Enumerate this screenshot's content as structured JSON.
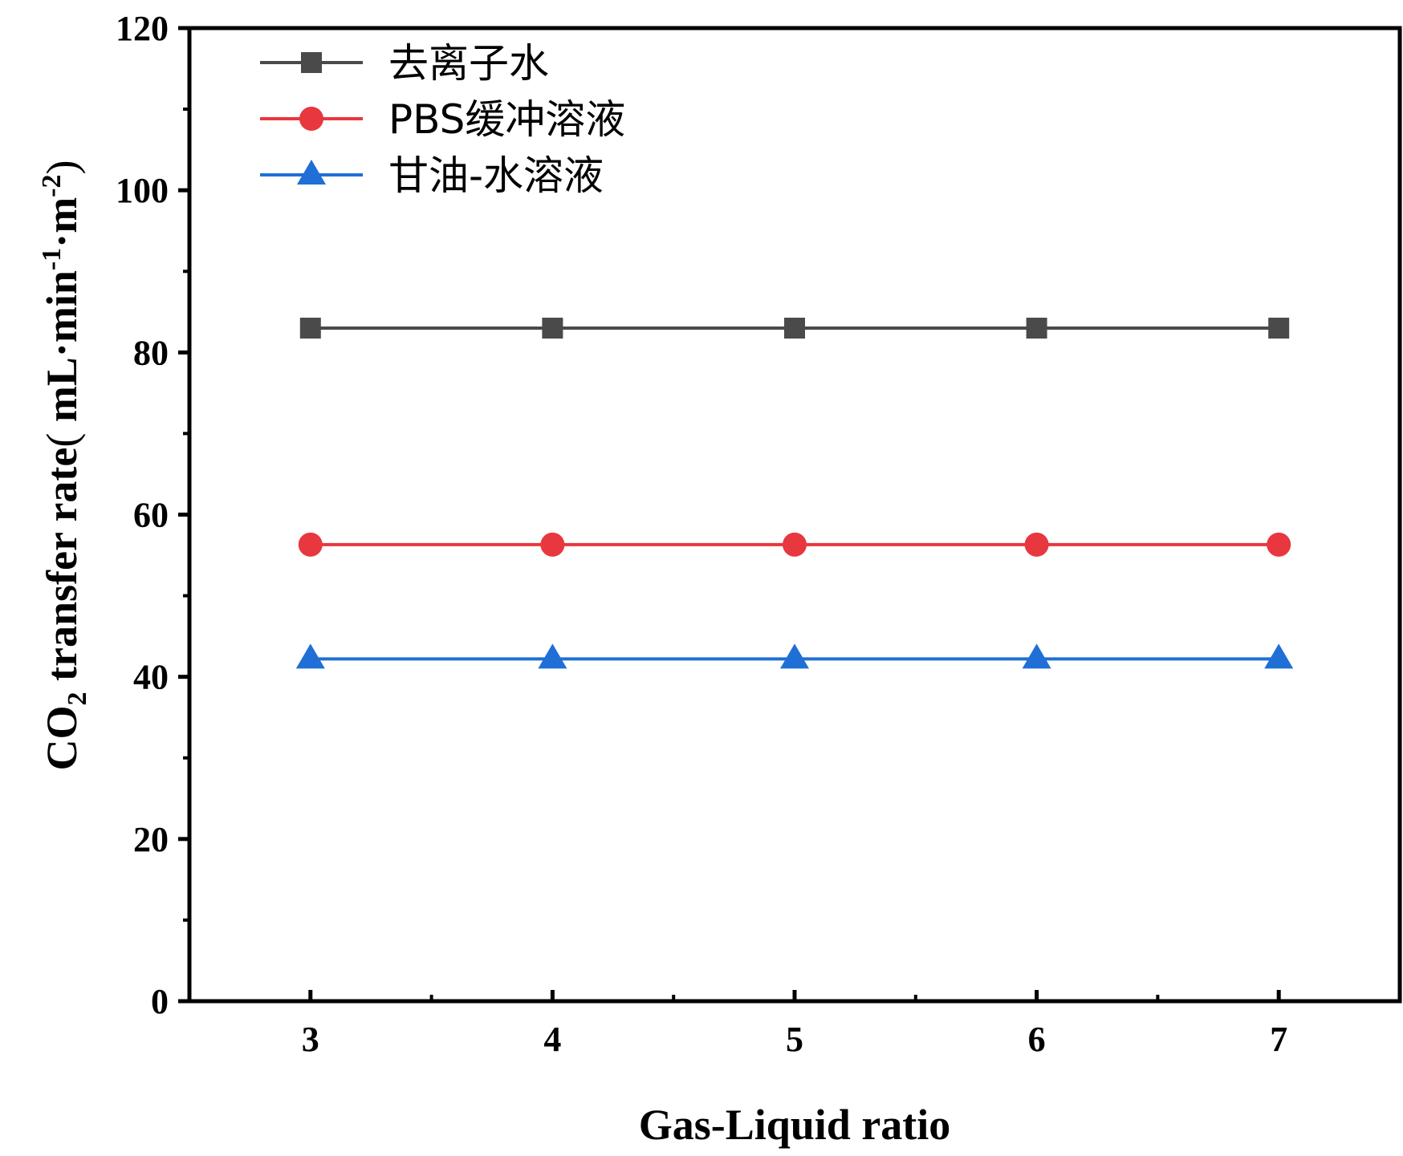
{
  "chart_data": {
    "type": "line",
    "x": [
      3,
      4,
      5,
      6,
      7
    ],
    "xlim": [
      2.5,
      7.5
    ],
    "ylim": [
      0,
      120
    ],
    "x_ticks": [
      "3",
      "4",
      "5",
      "6",
      "7"
    ],
    "y_ticks": [
      "0",
      "20",
      "40",
      "60",
      "80",
      "100",
      "120"
    ],
    "xlabel": "Gas-Liquid ratio",
    "ylabel": {
      "prefix": "CO",
      "sub": "2",
      "main": " transfer rate",
      "paren_open": "(",
      "unit_a": " mL·min",
      "sup1": "-1",
      "unit_b": "·m",
      "sup2": "-2",
      "paren_close": ")"
    },
    "series": [
      {
        "name": "去离子水",
        "values": [
          83,
          83,
          83,
          83,
          83
        ],
        "color": "#4a4a4a",
        "marker": "square"
      },
      {
        "name": "PBS缓冲溶液",
        "values": [
          56.3,
          56.3,
          56.3,
          56.3,
          56.3
        ],
        "color": "#e8373e",
        "marker": "circle"
      },
      {
        "name": "甘油-水溶液",
        "values": [
          42.2,
          42.2,
          42.2,
          42.2,
          42.2
        ],
        "color": "#1f6fd6",
        "marker": "triangle"
      }
    ],
    "grid": false,
    "legend_position": "top-left"
  }
}
